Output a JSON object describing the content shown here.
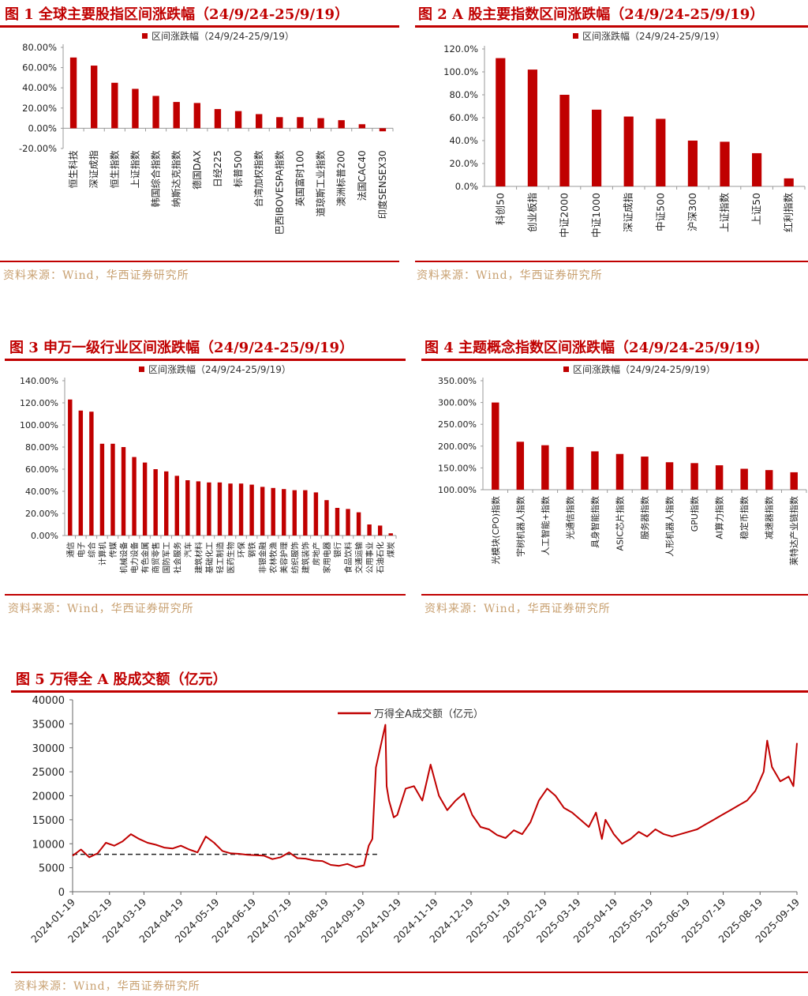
{
  "charts": [
    {
      "title": "图 1 全球主要股指区间涨跌幅（24/9/24-25/9/19）",
      "source": "资料来源：Wind，华西证券研究所",
      "chart_data": {
        "type": "bar",
        "legend": "区间涨跌幅（24/9/24-25/9/19）",
        "legend_position": "top",
        "categories": [
          "恒生科技",
          "深证成指",
          "恒生指数",
          "上证指数",
          "韩国综合指数",
          "纳斯达克指数",
          "德国DAX",
          "日经225",
          "标普500",
          "台湾加权指数",
          "巴西IBOVESPA指数",
          "英国富时100",
          "道琼斯工业指数",
          "澳洲标普200",
          "法国CAC40",
          "印度SENSEX30"
        ],
        "values": [
          70,
          62,
          45,
          39,
          32,
          26,
          25,
          19,
          17,
          14,
          11,
          11,
          10,
          8,
          4,
          -3
        ],
        "unit": "%",
        "yticks": [
          "-20.00%",
          "0.00%",
          "20.00%",
          "40.00%",
          "60.00%",
          "80.00%"
        ],
        "ylim": [
          -20,
          80
        ],
        "color": "#c00000"
      }
    },
    {
      "title": "图 2 A 股主要指数区间涨跌幅（24/9/24-25/9/19）",
      "source": "资料来源：Wind，华西证券研究所",
      "chart_data": {
        "type": "bar",
        "legend": "区间涨跌幅（24/9/24-25/9/19）",
        "legend_position": "top",
        "categories": [
          "科创50",
          "创业板指",
          "中证2000",
          "中证1000",
          "深证成指",
          "中证500",
          "沪深300",
          "上证指数",
          "上证50",
          "红利指数"
        ],
        "values": [
          112,
          102,
          80,
          67,
          61,
          59,
          40,
          39,
          29,
          7
        ],
        "unit": "%",
        "yticks": [
          "0.0%",
          "20.0%",
          "40.0%",
          "60.0%",
          "80.0%",
          "100.0%",
          "120.0%"
        ],
        "ylim": [
          0,
          120
        ],
        "color": "#c00000"
      }
    },
    {
      "title": "图 3 申万一级行业区间涨跌幅（24/9/24-25/9/19）",
      "source": "资料来源：Wind，华西证券研究所",
      "chart_data": {
        "type": "bar",
        "legend": "区间涨跌幅（24/9/24-25/9/19）",
        "legend_position": "top",
        "categories": [
          "通信",
          "电子",
          "综合",
          "计算机",
          "传媒",
          "机械设备",
          "电力设备",
          "有色金属",
          "商贸零售",
          "国防军工",
          "社会服务",
          "汽车",
          "建筑材料",
          "基础化工",
          "轻工制造",
          "医药生物",
          "环保",
          "钢铁",
          "非银金融",
          "农林牧渔",
          "美容护理",
          "纺织服饰",
          "建筑装饰",
          "房地产",
          "家用电器",
          "银行",
          "食品饮料",
          "交通运输",
          "公用事业",
          "石油石化",
          "煤炭"
        ],
        "values": [
          123,
          113,
          112,
          83,
          83,
          80,
          71,
          66,
          60,
          58,
          54,
          50,
          49,
          48,
          48,
          47,
          47,
          46,
          44,
          43,
          42,
          41,
          41,
          39,
          32,
          25,
          24,
          21,
          10,
          9,
          2
        ],
        "unit": "%",
        "yticks": [
          "0.00%",
          "20.00%",
          "40.00%",
          "60.00%",
          "80.00%",
          "100.00%",
          "120.00%",
          "140.00%"
        ],
        "ylim": [
          0,
          140
        ],
        "color": "#c00000"
      }
    },
    {
      "title": "图 4 主题概念指数区间涨跌幅（24/9/24-25/9/19）",
      "source": "资料来源：Wind，华西证券研究所",
      "chart_data": {
        "type": "bar",
        "legend": "区间涨跌幅（24/9/24-25/9/19）",
        "legend_position": "top",
        "categories": [
          "光模块(CPO)指数",
          "宇树机器人指数",
          "人工智能+指数",
          "光通信指数",
          "具身智能指数",
          "ASIC芯片指数",
          "服务器指数",
          "人形机器人指数",
          "GPU指数",
          "AI算力指数",
          "稳定币指数",
          "减速器指数",
          "莱特达产业链指数"
        ],
        "values": [
          300,
          210,
          202,
          198,
          188,
          182,
          176,
          163,
          161,
          156,
          148,
          145,
          140
        ],
        "unit": "%",
        "yticks": [
          "100.00%",
          "150.00%",
          "200.00%",
          "250.00%",
          "300.00%",
          "350.00%"
        ],
        "ylim": [
          100,
          350
        ],
        "color": "#c00000"
      }
    },
    {
      "title": "图 5 万得全 A 股成交额（亿元）",
      "source": "资料来源：Wind，华西证券研究所",
      "chart_data": {
        "type": "line",
        "legend": "万得全A成交额（亿元）",
        "legend_position": "top",
        "xticks": [
          "2024-01-19",
          "2024-02-19",
          "2024-03-19",
          "2024-04-19",
          "2024-05-19",
          "2024-06-19",
          "2024-07-19",
          "2024-08-19",
          "2024-09-19",
          "2024-10-19",
          "2024-11-19",
          "2024-12-19",
          "2025-01-19",
          "2025-02-19",
          "2025-03-19",
          "2025-04-19",
          "2025-05-19",
          "2025-06-19",
          "2025-07-19",
          "2025-08-19",
          "2025-09-19"
        ],
        "yticks": [
          "0",
          "5000",
          "10000",
          "15000",
          "20000",
          "25000",
          "30000",
          "35000",
          "40000"
        ],
        "ylim": [
          0,
          40000
        ],
        "reference_line": 7800,
        "x": [
          "2024-01-19",
          "2024-01-26",
          "2024-02-02",
          "2024-02-09",
          "2024-02-16",
          "2024-02-23",
          "2024-03-01",
          "2024-03-08",
          "2024-03-15",
          "2024-03-22",
          "2024-03-29",
          "2024-04-05",
          "2024-04-12",
          "2024-04-19",
          "2024-04-26",
          "2024-05-03",
          "2024-05-10",
          "2024-05-17",
          "2024-05-24",
          "2024-05-31",
          "2024-06-07",
          "2024-06-14",
          "2024-06-21",
          "2024-06-28",
          "2024-07-05",
          "2024-07-12",
          "2024-07-19",
          "2024-07-26",
          "2024-08-02",
          "2024-08-09",
          "2024-08-16",
          "2024-08-23",
          "2024-08-30",
          "2024-09-06",
          "2024-09-13",
          "2024-09-20",
          "2024-09-24",
          "2024-09-27",
          "2024-09-30",
          "2024-10-08",
          "2024-10-09",
          "2024-10-11",
          "2024-10-15",
          "2024-10-18",
          "2024-10-25",
          "2024-11-01",
          "2024-11-08",
          "2024-11-15",
          "2024-11-22",
          "2024-11-29",
          "2024-12-06",
          "2024-12-13",
          "2024-12-20",
          "2024-12-27",
          "2025-01-03",
          "2025-01-10",
          "2025-01-17",
          "2025-01-24",
          "2025-01-31",
          "2025-02-07",
          "2025-02-14",
          "2025-02-21",
          "2025-02-28",
          "2025-03-07",
          "2025-03-14",
          "2025-03-21",
          "2025-03-28",
          "2025-04-03",
          "2025-04-08",
          "2025-04-11",
          "2025-04-18",
          "2025-04-25",
          "2025-05-02",
          "2025-05-09",
          "2025-05-16",
          "2025-05-23",
          "2025-05-30",
          "2025-06-06",
          "2025-06-13",
          "2025-06-20",
          "2025-06-27",
          "2025-07-04",
          "2025-07-11",
          "2025-07-18",
          "2025-07-25",
          "2025-08-01",
          "2025-08-08",
          "2025-08-15",
          "2025-08-22",
          "2025-08-25",
          "2025-08-29",
          "2025-09-05",
          "2025-09-12",
          "2025-09-16",
          "2025-09-19"
        ],
        "values": [
          7500,
          8800,
          7200,
          8000,
          10200,
          9600,
          10500,
          12000,
          11000,
          10200,
          9800,
          9200,
          9000,
          9600,
          8800,
          8200,
          11500,
          10200,
          8500,
          8000,
          7900,
          7700,
          7600,
          7500,
          6800,
          7200,
          8200,
          7000,
          6900,
          6500,
          6400,
          5600,
          5400,
          5800,
          5100,
          5500,
          9600,
          11000,
          25900,
          34800,
          22000,
          19000,
          15500,
          16000,
          21500,
          22000,
          19000,
          26500,
          20000,
          17000,
          19000,
          20500,
          16000,
          13500,
          13000,
          11800,
          11200,
          12800,
          12000,
          14500,
          19000,
          21500,
          20000,
          17500,
          16500,
          15000,
          13500,
          16500,
          11000,
          15000,
          12000,
          10000,
          11000,
          12500,
          11500,
          13000,
          12000,
          11500,
          12000,
          12500,
          13000,
          14000,
          15000,
          16000,
          17000,
          18000,
          19000,
          21000,
          25000,
          31500,
          26000,
          23000,
          24000,
          22000,
          31000
        ]
      }
    }
  ]
}
